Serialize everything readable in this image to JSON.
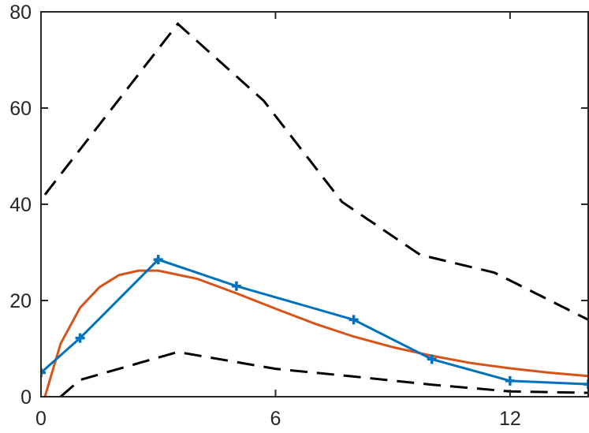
{
  "chart_data": {
    "type": "line",
    "xlim": [
      0,
      14
    ],
    "ylim": [
      0,
      80
    ],
    "xticks": [
      0,
      6,
      12
    ],
    "yticks": [
      0,
      20,
      40,
      60,
      80
    ],
    "series": [
      {
        "color": "#000000",
        "line_style": "dashed",
        "x": [
          0.1,
          3.5,
          5.7,
          7.7,
          9.7,
          11.6,
          14
        ],
        "values": [
          42,
          77.5,
          61.5,
          40.5,
          29.5,
          25.8,
          16
        ]
      },
      {
        "color": "#000000",
        "line_style": "dashed",
        "x": [
          0.5,
          1,
          3.5,
          6,
          8,
          10,
          12,
          14
        ],
        "values": [
          0,
          3.5,
          9.3,
          5.8,
          4.2,
          2.5,
          1.1,
          0.8
        ]
      },
      {
        "color": "#d95319",
        "line_style": "solid",
        "x": [
          0.1,
          0.5,
          1,
          1.5,
          2,
          2.5,
          3,
          4,
          5,
          6,
          7,
          8,
          9,
          10,
          11,
          12,
          13,
          14
        ],
        "values": [
          0,
          11,
          18.5,
          22.8,
          25.3,
          26.2,
          26.2,
          24.5,
          21.5,
          18.3,
          15.2,
          12.5,
          10.3,
          8.5,
          7,
          5.9,
          5,
          4.3
        ]
      },
      {
        "color": "#0072bd",
        "line_style": "solid",
        "marker": "+",
        "x": [
          0,
          1,
          3,
          5,
          8,
          10,
          12,
          14
        ],
        "values": [
          5,
          12.2,
          28.5,
          23,
          16,
          7.8,
          3.3,
          2.6
        ]
      }
    ]
  }
}
